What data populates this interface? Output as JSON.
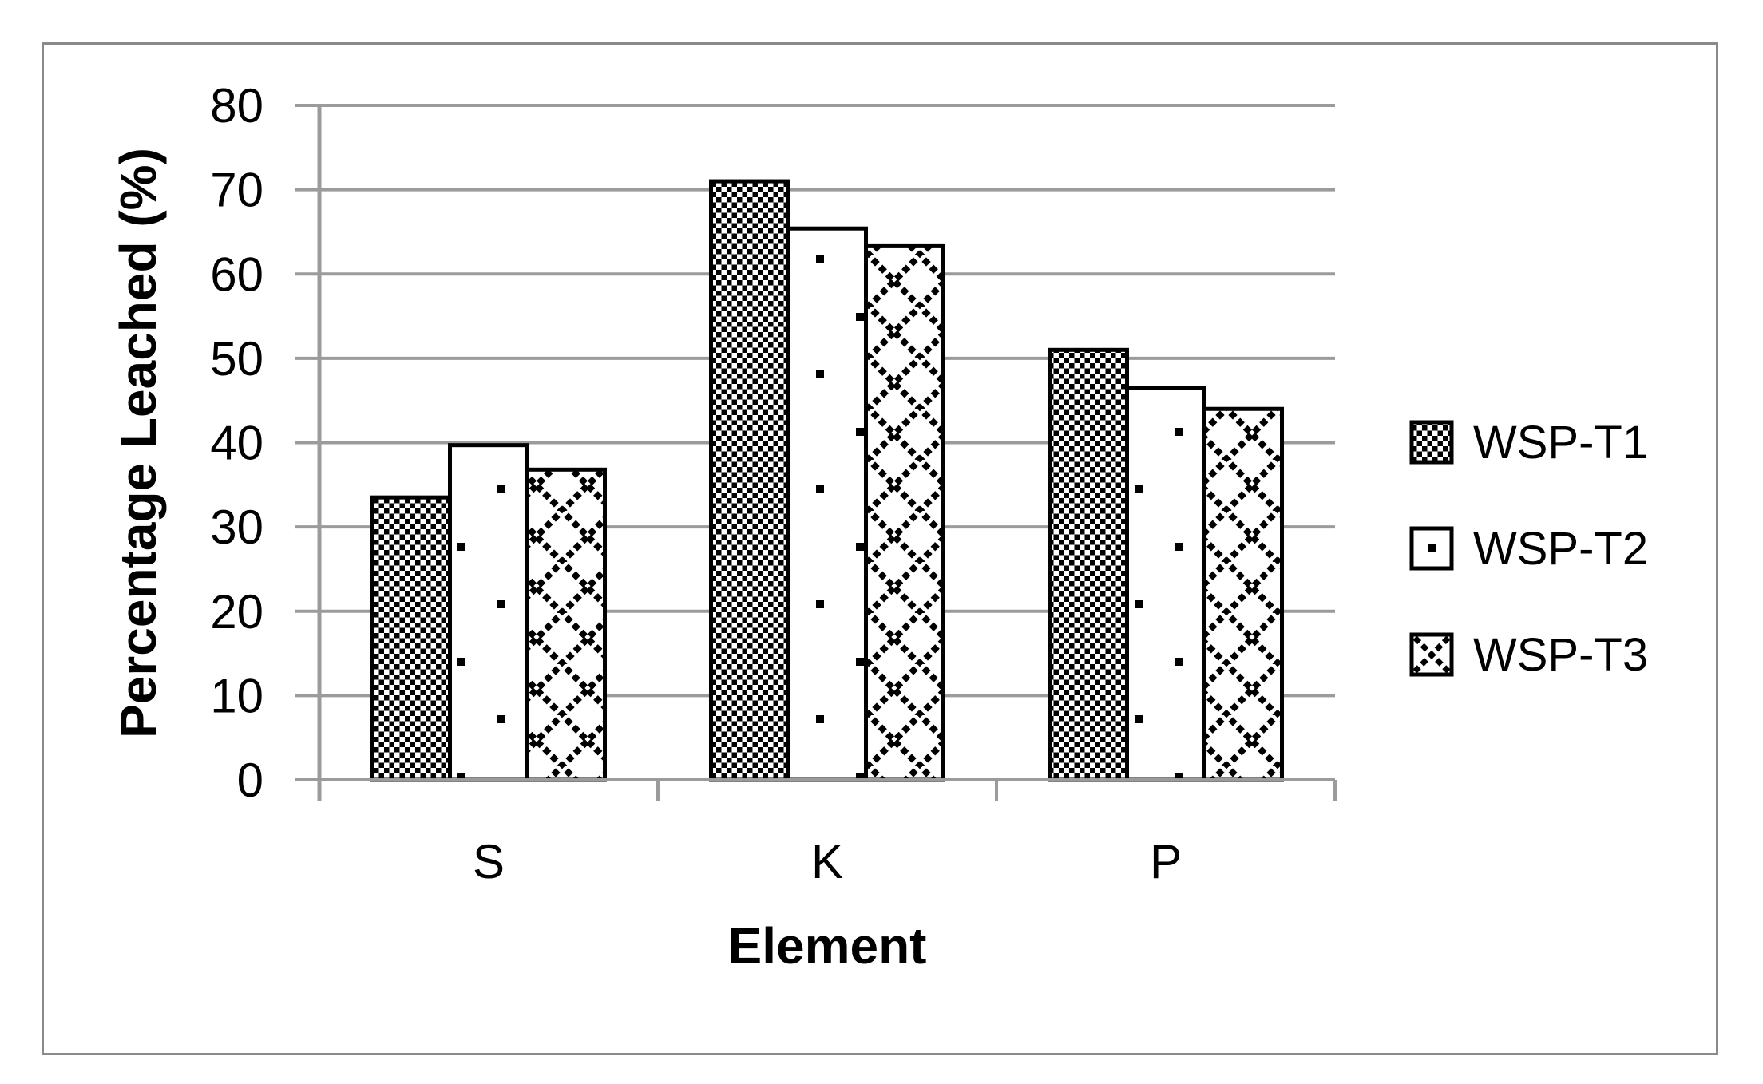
{
  "figure": {
    "frame_color": "#8a8a8a",
    "background": "#ffffff"
  },
  "chart_data": {
    "type": "bar",
    "title": "",
    "xlabel": "Element",
    "ylabel": "Percentage Leached (%)",
    "categories": [
      "S",
      "K",
      "P"
    ],
    "series": [
      {
        "name": "WSP-T1",
        "pattern": "checkerboard-pattern",
        "values": [
          33.5,
          71.0,
          51.0
        ]
      },
      {
        "name": "WSP-T2",
        "pattern": "dot-pattern",
        "values": [
          39.7,
          65.4,
          46.5
        ]
      },
      {
        "name": "WSP-T3",
        "pattern": "diamond-crosshatch-pattern",
        "values": [
          36.8,
          63.3,
          44.0
        ]
      }
    ],
    "ylim": [
      0,
      80
    ],
    "yticks": [
      0,
      10,
      20,
      30,
      40,
      50,
      60,
      70,
      80
    ],
    "grid": true,
    "legend_position": "right",
    "bar_outline_color": "#000000",
    "bar_fill_color": "#ffffff",
    "gridline_color": "#9b9b9b",
    "axis_color": "#9b9b9b"
  }
}
